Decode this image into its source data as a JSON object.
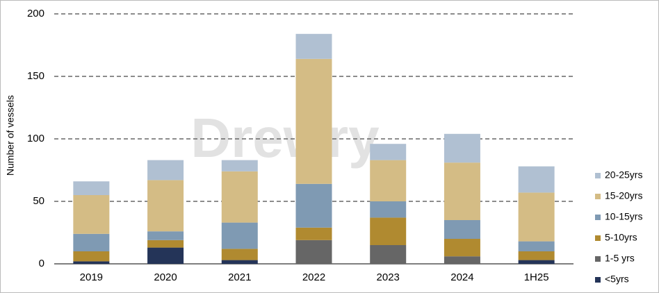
{
  "chart_data": {
    "type": "stacked_bar",
    "y_label": "Number of vessels",
    "watermark": "Drewry",
    "categories": [
      "2019",
      "2020",
      "2021",
      "2022",
      "2023",
      "2024",
      "1H25"
    ],
    "series": [
      {
        "name": "<5yrs",
        "color": "#243458",
        "values": [
          2,
          13,
          3,
          0,
          0,
          0,
          3
        ]
      },
      {
        "name": "1-5 yrs",
        "color": "#666666",
        "values": [
          0,
          0,
          0,
          19,
          15,
          6,
          0
        ]
      },
      {
        "name": "5-10yrs",
        "color": "#b08a30",
        "values": [
          8,
          6,
          9,
          10,
          22,
          14,
          7
        ]
      },
      {
        "name": "10-15yrs",
        "color": "#7f9ab3",
        "values": [
          14,
          7,
          21,
          35,
          13,
          15,
          8
        ]
      },
      {
        "name": "15-20yrs",
        "color": "#d4bc85",
        "values": [
          31,
          41,
          41,
          100,
          33,
          46,
          39
        ]
      },
      {
        "name": "20-25yrs",
        "color": "#b0c0d2",
        "values": [
          11,
          16,
          9,
          20,
          13,
          23,
          21
        ]
      }
    ],
    "ylim": [
      0,
      200
    ],
    "yticks": [
      0,
      50,
      100,
      150,
      200
    ],
    "grid": true,
    "legend": "right"
  }
}
